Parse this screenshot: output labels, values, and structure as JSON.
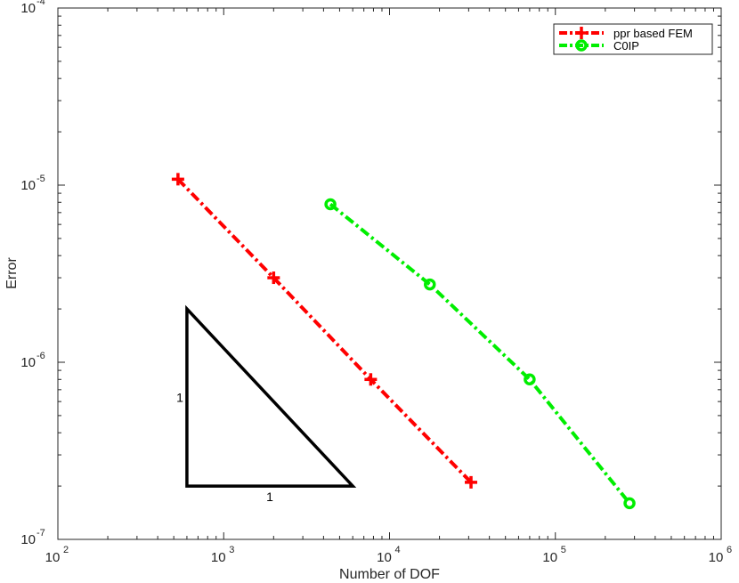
{
  "chart_data": {
    "type": "line",
    "xscale": "log",
    "yscale": "log",
    "xlabel": "Number of DOF",
    "ylabel": "Error",
    "xlim": [
      100,
      1000000
    ],
    "ylim": [
      1e-07,
      0.0001
    ],
    "x_ticks": [
      {
        "base": "10",
        "exp": "2"
      },
      {
        "base": "10",
        "exp": "3"
      },
      {
        "base": "10",
        "exp": "4"
      },
      {
        "base": "10",
        "exp": "5"
      },
      {
        "base": "10",
        "exp": "6"
      }
    ],
    "y_ticks": [
      {
        "base": "10",
        "exp": "-7"
      },
      {
        "base": "10",
        "exp": "-6"
      },
      {
        "base": "10",
        "exp": "-5"
      },
      {
        "base": "10",
        "exp": "-4"
      }
    ],
    "grid": false,
    "legend_position": "top-right",
    "series": [
      {
        "name": "ppr based FEM",
        "color": "#ff0000",
        "marker": "plus",
        "line_style": "dash-dot",
        "x": [
          530,
          2000,
          7700,
          31000
        ],
        "y": [
          1.08e-05,
          3e-06,
          8e-07,
          2.1e-07
        ]
      },
      {
        "name": "C0IP",
        "color": "#00ee00",
        "marker": "circle",
        "line_style": "dash-dot",
        "x": [
          4400,
          17500,
          70000,
          280000
        ],
        "y": [
          7.8e-06,
          2.75e-06,
          8e-07,
          1.6e-07
        ]
      }
    ],
    "slope_triangle": {
      "vertices_data": [
        [
          600,
          2e-06
        ],
        [
          600,
          2e-07
        ],
        [
          6000,
          2e-07
        ]
      ],
      "vertical_label": "1",
      "horizontal_label": "1"
    }
  }
}
